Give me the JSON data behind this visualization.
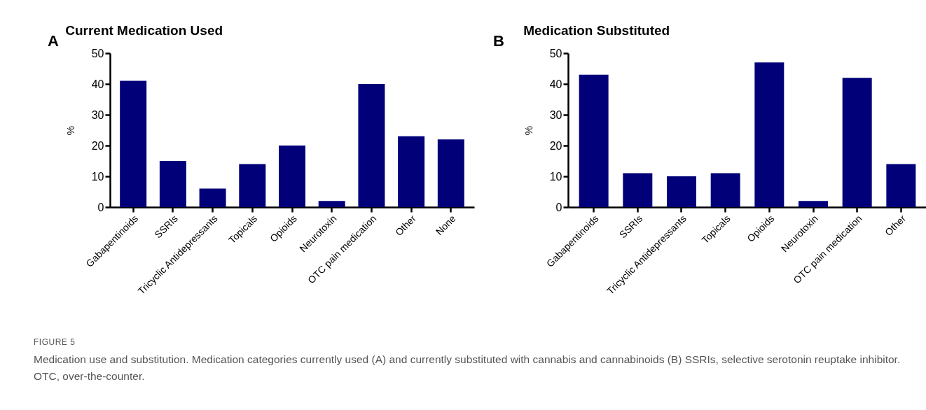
{
  "chart_data": [
    {
      "type": "bar",
      "title": "Current Medication Used",
      "ylabel": "%",
      "categories": [
        "Gabapentinoids",
        "SSRIs",
        "Tricyclic Antidepressants",
        "Topicals",
        "Opioids",
        "Neurotoxin",
        "OTC pain medication",
        "Other",
        "None"
      ],
      "values": [
        41,
        15,
        6,
        14,
        20,
        2,
        40,
        23,
        22
      ],
      "color": "#020079",
      "ylim": [
        0,
        50
      ],
      "yticks": [
        0,
        10,
        20,
        30,
        40,
        50
      ],
      "grid": false,
      "annotations": [
        "A",
        "FIGURE 5",
        "Medication use and substitution. Medication categories currently used (A) and currently substituted with cannabis and cannabinoids (B) SSRIs, selective serotonin reuptake inhibitor. OTC, over-the-counter."
      ]
    },
    {
      "type": "bar",
      "title": "Medication Substituted",
      "ylabel": "%",
      "categories": [
        "Gabapentinoids",
        "SSRIs",
        "Tricyclic Antidepressants",
        "Topicals",
        "Opioids",
        "Neurotoxin",
        "OTC pain medication",
        "Other"
      ],
      "values": [
        43,
        11,
        10,
        11,
        47,
        2,
        42,
        14
      ],
      "color": "#020079",
      "ylim": [
        0,
        50
      ],
      "yticks": [
        0,
        10,
        20,
        30,
        40,
        50
      ],
      "grid": false,
      "annotations": [
        "B"
      ]
    }
  ]
}
